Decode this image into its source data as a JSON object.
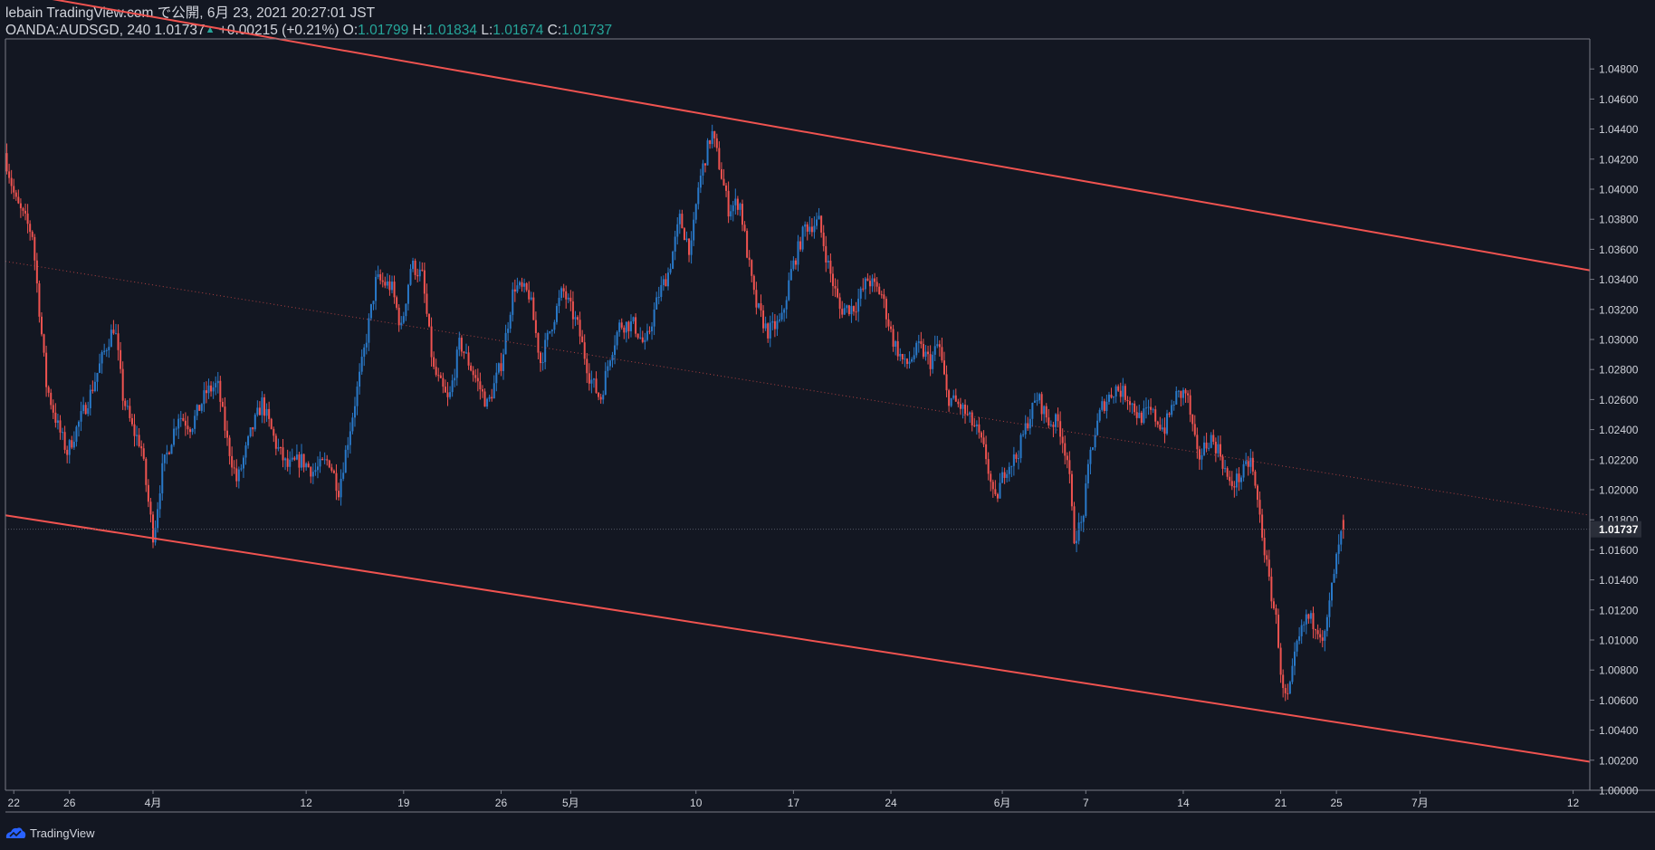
{
  "header": {
    "line1": "lebain TradingView.com で公開, 6月 23, 2021 20:27:01 JST",
    "symbol": "OANDA:AUDSGD, 240",
    "last": "1.01737",
    "change_arrow": "▲",
    "change": "+0.00215 (+0.21%)",
    "o_label": "O:",
    "o_value": "1.01799",
    "h_label": "H:",
    "h_value": "1.01834",
    "l_label": "L:",
    "l_value": "1.01674",
    "c_label": "C:",
    "c_value": "1.01737"
  },
  "footer": {
    "brand": "TradingView",
    "logo_icon": "tradingview-logo-icon"
  },
  "colors": {
    "background": "#131722",
    "up": "#2979c9",
    "down": "#ef5350",
    "channel": "#f05350",
    "grid_text": "#d1d4dc",
    "axis_line": "#787b86"
  },
  "chart_data": {
    "type": "candlestick",
    "symbol": "OANDA:AUDSGD",
    "interval": "240",
    "title": "OANDA:AUDSGD, 240",
    "y_range": [
      1.0,
      1.05
    ],
    "y_ticks": [
      "1.04800",
      "1.04600",
      "1.04400",
      "1.04200",
      "1.04000",
      "1.03800",
      "1.03600",
      "1.03400",
      "1.03200",
      "1.03000",
      "1.02800",
      "1.02600",
      "1.02400",
      "1.02200",
      "1.02000",
      "1.01800",
      "1.01600",
      "1.01400",
      "1.01200",
      "1.01000",
      "1.00800",
      "1.00600",
      "1.00400",
      "1.00200",
      "1.00000"
    ],
    "y_tick_values": [
      1.048,
      1.046,
      1.044,
      1.042,
      1.04,
      1.038,
      1.036,
      1.034,
      1.032,
      1.03,
      1.028,
      1.026,
      1.024,
      1.022,
      1.02,
      1.018,
      1.016,
      1.014,
      1.012,
      1.01,
      1.008,
      1.006,
      1.004,
      1.002,
      1.0
    ],
    "current_price_label": "1.01737",
    "current_price": 1.01737,
    "x_ticks": [
      {
        "label": "22",
        "day": 0
      },
      {
        "label": "26",
        "day": 4
      },
      {
        "label": "4月",
        "day": 10
      },
      {
        "label": "12",
        "day": 21
      },
      {
        "label": "19",
        "day": 28
      },
      {
        "label": "26",
        "day": 35
      },
      {
        "label": "5月",
        "day": 40
      },
      {
        "label": "10",
        "day": 49
      },
      {
        "label": "17",
        "day": 56
      },
      {
        "label": "24",
        "day": 63
      },
      {
        "label": "6月",
        "day": 71
      },
      {
        "label": "7",
        "day": 77
      },
      {
        "label": "14",
        "day": 84
      },
      {
        "label": "21",
        "day": 91
      },
      {
        "label": "25",
        "day": 95
      },
      {
        "label": "7月",
        "day": 101
      },
      {
        "label": "12",
        "day": 112
      }
    ],
    "x_day_range": [
      -0.6,
      113.2
    ],
    "anchors": [
      [
        -0.5,
        1.0424
      ],
      [
        0.3,
        1.0392
      ],
      [
        1.5,
        1.037
      ],
      [
        2.5,
        1.027
      ],
      [
        3.3,
        1.0243
      ],
      [
        4.0,
        1.0225
      ],
      [
        5.6,
        1.0262
      ],
      [
        6.6,
        1.029
      ],
      [
        7.4,
        1.031
      ],
      [
        8.0,
        1.0262
      ],
      [
        8.7,
        1.024
      ],
      [
        9.3,
        1.023
      ],
      [
        9.9,
        1.0187
      ],
      [
        10.2,
        1.0168
      ],
      [
        10.8,
        1.0212
      ],
      [
        12.0,
        1.025
      ],
      [
        12.9,
        1.0242
      ],
      [
        14.0,
        1.0265
      ],
      [
        14.8,
        1.027
      ],
      [
        15.5,
        1.0232
      ],
      [
        16.2,
        1.0205
      ],
      [
        17.2,
        1.0238
      ],
      [
        18.0,
        1.0258
      ],
      [
        19.0,
        1.023
      ],
      [
        19.8,
        1.0215
      ],
      [
        20.8,
        1.022
      ],
      [
        21.7,
        1.0212
      ],
      [
        22.8,
        1.022
      ],
      [
        23.5,
        1.02
      ],
      [
        24.4,
        1.0245
      ],
      [
        25.2,
        1.0285
      ],
      [
        26.2,
        1.034
      ],
      [
        27.3,
        1.0335
      ],
      [
        28.0,
        1.0307
      ],
      [
        28.7,
        1.035
      ],
      [
        29.5,
        1.0342
      ],
      [
        30.3,
        1.028
      ],
      [
        31.4,
        1.0258
      ],
      [
        32.2,
        1.0298
      ],
      [
        33.3,
        1.0275
      ],
      [
        34.2,
        1.0256
      ],
      [
        35.2,
        1.0285
      ],
      [
        36.1,
        1.0336
      ],
      [
        37.2,
        1.033
      ],
      [
        38.0,
        1.0285
      ],
      [
        38.8,
        1.031
      ],
      [
        39.6,
        1.0333
      ],
      [
        40.7,
        1.0308
      ],
      [
        41.5,
        1.0276
      ],
      [
        42.3,
        1.026
      ],
      [
        43.0,
        1.029
      ],
      [
        43.7,
        1.031
      ],
      [
        44.7,
        1.031
      ],
      [
        45.5,
        1.0295
      ],
      [
        46.5,
        1.033
      ],
      [
        47.2,
        1.0345
      ],
      [
        48.0,
        1.038
      ],
      [
        48.8,
        1.0358
      ],
      [
        49.3,
        1.04
      ],
      [
        49.8,
        1.042
      ],
      [
        50.3,
        1.0438
      ],
      [
        50.8,
        1.0418
      ],
      [
        51.5,
        1.0387
      ],
      [
        52.3,
        1.0392
      ],
      [
        52.8,
        1.036
      ],
      [
        53.4,
        1.0325
      ],
      [
        54.3,
        1.0305
      ],
      [
        55.3,
        1.0312
      ],
      [
        56.0,
        1.0345
      ],
      [
        57.0,
        1.0375
      ],
      [
        58.0,
        1.0378
      ],
      [
        58.7,
        1.0348
      ],
      [
        59.5,
        1.032
      ],
      [
        60.6,
        1.0322
      ],
      [
        61.5,
        1.034
      ],
      [
        62.5,
        1.033
      ],
      [
        63.3,
        1.03
      ],
      [
        64.2,
        1.0282
      ],
      [
        65.2,
        1.0295
      ],
      [
        66.0,
        1.0285
      ],
      [
        66.6,
        1.0298
      ],
      [
        67.2,
        1.0262
      ],
      [
        68.2,
        1.0255
      ],
      [
        69.3,
        1.024
      ],
      [
        70.0,
        1.0222
      ],
      [
        70.6,
        1.019
      ],
      [
        71.4,
        1.0215
      ],
      [
        72.2,
        1.0222
      ],
      [
        73.0,
        1.0246
      ],
      [
        73.7,
        1.0262
      ],
      [
        74.5,
        1.0245
      ],
      [
        75.2,
        1.0245
      ],
      [
        75.9,
        1.0218
      ],
      [
        76.3,
        1.0168
      ],
      [
        76.9,
        1.0178
      ],
      [
        77.5,
        1.0225
      ],
      [
        78.3,
        1.0255
      ],
      [
        79.3,
        1.0268
      ],
      [
        80.2,
        1.0262
      ],
      [
        81.0,
        1.0248
      ],
      [
        81.8,
        1.0252
      ],
      [
        82.8,
        1.024
      ],
      [
        83.6,
        1.0262
      ],
      [
        84.4,
        1.0265
      ],
      [
        85.2,
        1.022
      ],
      [
        86.1,
        1.0235
      ],
      [
        86.8,
        1.0225
      ],
      [
        87.5,
        1.0202
      ],
      [
        88.4,
        1.021
      ],
      [
        89.0,
        1.022
      ],
      [
        89.7,
        1.018
      ],
      [
        90.3,
        1.014
      ],
      [
        90.9,
        1.011
      ],
      [
        91.3,
        1.0065
      ],
      [
        91.7,
        1.006
      ],
      [
        92.3,
        1.0095
      ],
      [
        93.0,
        1.0115
      ],
      [
        93.8,
        1.011
      ],
      [
        94.3,
        1.01
      ],
      [
        95.0,
        1.0145
      ],
      [
        95.6,
        1.0174
      ]
    ],
    "last_candle": {
      "open": 1.01799,
      "high": 1.01834,
      "low": 1.01674,
      "close": 1.01737
    },
    "channel": {
      "upper": [
        [
          -0.6,
          1.0532
        ],
        [
          113.2,
          1.0346
        ]
      ],
      "lower": [
        [
          -0.6,
          1.0183
        ],
        [
          113.2,
          1.0019
        ]
      ],
      "mid": [
        [
          -0.6,
          1.0352
        ],
        [
          113.2,
          1.0183
        ]
      ]
    }
  }
}
